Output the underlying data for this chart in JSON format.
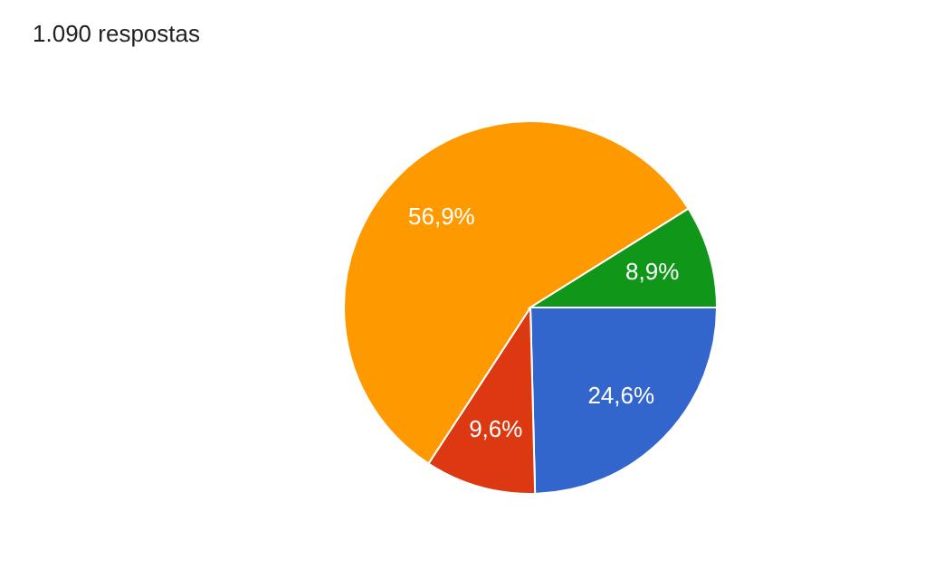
{
  "chart_data": {
    "type": "pie",
    "title": "1.090 respostas",
    "categories": [
      null,
      null,
      null,
      null
    ],
    "values": [
      24.6,
      9.6,
      56.9,
      8.9
    ],
    "colors": [
      "#3366cc",
      "#dc3912",
      "#ff9900",
      "#109618"
    ],
    "value_labels": [
      "24,6%",
      "9,6%",
      "56,9%",
      "8,9%"
    ],
    "legend": false
  }
}
